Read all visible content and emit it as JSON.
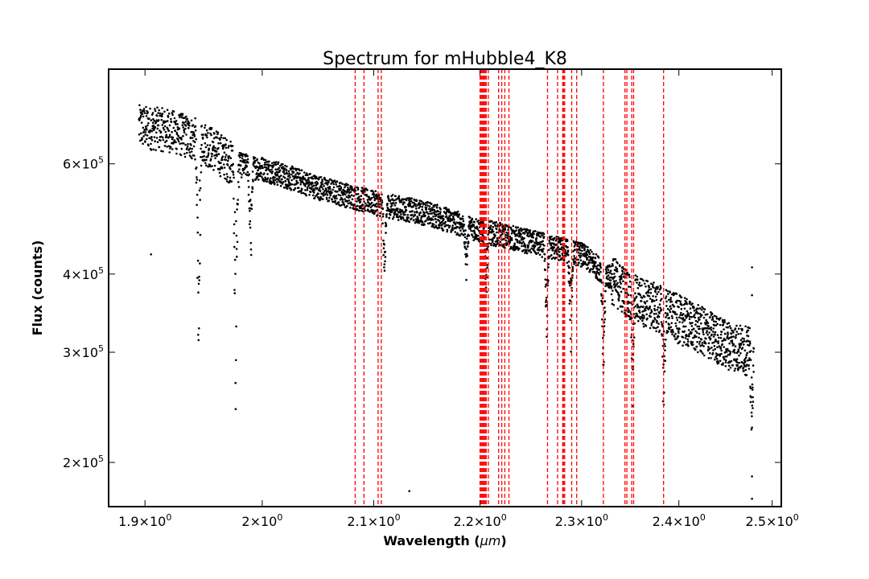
{
  "chart_data": {
    "type": "scatter",
    "title": "Spectrum for mHubble4_K8",
    "xlabel": "Wavelength (",
    "xlabel_unit": "μm",
    "xlabel_end": ")",
    "ylabel": "Flux (counts)",
    "xscale": "log",
    "yscale": "log",
    "xlim": [
      1.87,
      2.51
    ],
    "ylim": [
      170000,
      850000
    ],
    "grid": false,
    "marker_color": "#000000",
    "line_color": "#ff0000",
    "x_ticks": [
      {
        "value": 1.9,
        "mantissa": "1.9",
        "base": "10",
        "exp": "0"
      },
      {
        "value": 2.0,
        "mantissa": "2",
        "base": "10",
        "exp": "0"
      },
      {
        "value": 2.1,
        "mantissa": "2.1",
        "base": "10",
        "exp": "0"
      },
      {
        "value": 2.2,
        "mantissa": "2.2",
        "base": "10",
        "exp": "0"
      },
      {
        "value": 2.3,
        "mantissa": "2.3",
        "base": "10",
        "exp": "0"
      },
      {
        "value": 2.4,
        "mantissa": "2.4",
        "base": "10",
        "exp": "0"
      },
      {
        "value": 2.5,
        "mantissa": "2.5",
        "base": "10",
        "exp": "0"
      }
    ],
    "y_ticks": [
      {
        "value": 200000,
        "mantissa": "2",
        "base": "10",
        "exp": "5"
      },
      {
        "value": 300000,
        "mantissa": "3",
        "base": "10",
        "exp": "5"
      },
      {
        "value": 400000,
        "mantissa": "4",
        "base": "10",
        "exp": "5"
      },
      {
        "value": 600000,
        "mantissa": "6",
        "base": "10",
        "exp": "5"
      }
    ],
    "continuum": [
      [
        1.895,
        690000
      ],
      [
        1.92,
        680000
      ],
      [
        1.95,
        650000
      ],
      [
        1.975,
        600000
      ],
      [
        2.0,
        590000
      ],
      [
        2.05,
        550000
      ],
      [
        2.1,
        520000
      ],
      [
        2.15,
        500000
      ],
      [
        2.2,
        470000
      ],
      [
        2.25,
        450000
      ],
      [
        2.3,
        430000
      ],
      [
        2.35,
        370000
      ],
      [
        2.4,
        340000
      ],
      [
        2.45,
        310000
      ],
      [
        2.48,
        300000
      ]
    ],
    "absorption_features": [
      {
        "x": 1.945,
        "min": 265000
      },
      {
        "x": 1.977,
        "min": 232000
      },
      {
        "x": 1.99,
        "min": 390000
      },
      {
        "x": 2.11,
        "min": 375000
      },
      {
        "x": 2.187,
        "min": 375000
      },
      {
        "x": 2.206,
        "min": 340000
      },
      {
        "x": 2.265,
        "min": 320000
      },
      {
        "x": 2.289,
        "min": 285000
      },
      {
        "x": 2.322,
        "min": 255000
      },
      {
        "x": 2.352,
        "min": 260000
      },
      {
        "x": 2.384,
        "min": 245000
      },
      {
        "x": 2.478,
        "min": 225000
      }
    ],
    "outliers": [
      [
        1.905,
        430000
      ],
      [
        2.133,
        180000
      ],
      [
        2.478,
        410000
      ],
      [
        2.478,
        370000
      ],
      [
        2.478,
        190000
      ],
      [
        2.478,
        175000
      ]
    ],
    "line_positions": [
      2.083,
      2.091,
      2.104,
      2.107,
      2.2,
      2.201,
      2.202,
      2.203,
      2.204,
      2.205,
      2.206,
      2.208,
      2.218,
      2.221,
      2.224,
      2.228,
      2.266,
      2.276,
      2.281,
      2.282,
      2.283,
      2.29,
      2.295,
      2.322,
      2.344,
      2.346,
      2.351,
      2.353,
      2.384
    ]
  }
}
